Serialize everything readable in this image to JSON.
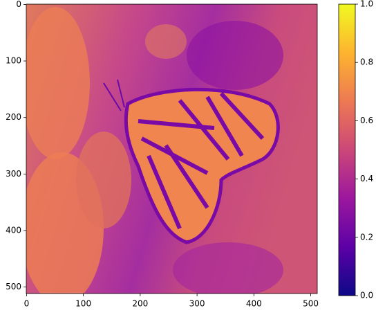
{
  "chart_data": {
    "type": "image",
    "xlim": [
      -0.5,
      511.5
    ],
    "ylim": [
      511.5,
      -0.5
    ],
    "xticks": [
      0,
      100,
      200,
      300,
      400,
      500
    ],
    "yticks": [
      0,
      100,
      200,
      300,
      400,
      500
    ],
    "colorbar": {
      "cmap": "plasma",
      "colors": [
        "#0d0887",
        "#5c01a6",
        "#9c179e",
        "#cc4778",
        "#ed7953",
        "#fdb42f",
        "#f0f921"
      ],
      "lim": [
        0,
        1
      ],
      "ticks": [
        {
          "value": 0,
          "label": "0.0"
        },
        0.2,
        0.4,
        0.6,
        0.8,
        {
          "value": 1,
          "label": "1.0"
        }
      ]
    }
  }
}
